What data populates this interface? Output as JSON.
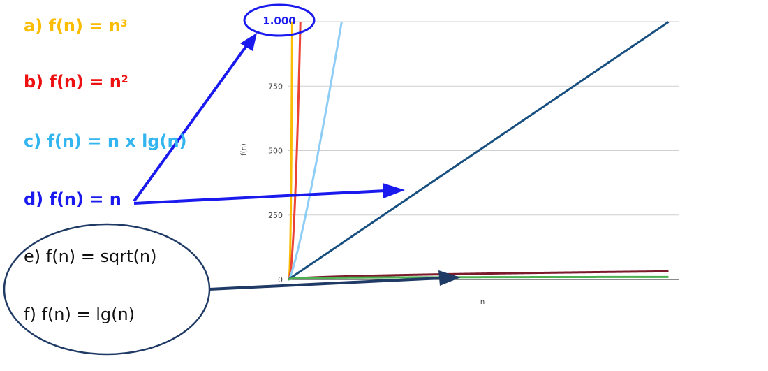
{
  "legend": {
    "a": {
      "prefix": "a) f(n) = n",
      "sup": "3",
      "color": "#fbbc04"
    },
    "b": {
      "prefix": "b) f(n) = n",
      "sup": "2",
      "color": "#ee1111"
    },
    "c": {
      "text": "c) f(n) = n x lg(n)",
      "color": "#33b5f0"
    },
    "d": {
      "text": "d) f(n) = n",
      "color": "#1a1aee"
    },
    "e": {
      "text": "e) f(n) = sqrt(n)",
      "color": "#111111"
    },
    "f": {
      "text": "f) f(n) = lg(n)",
      "color": "#111111"
    }
  },
  "annotation_color": "#1a1aee",
  "ellipse_color": "#203a66",
  "chart_data": {
    "type": "line",
    "title": "",
    "xlabel": "n",
    "ylabel": "f(n)",
    "ylim": [
      0,
      1000
    ],
    "xlim": [
      0,
      1000
    ],
    "yticks": [
      {
        "value": 0,
        "label": "0"
      },
      {
        "value": 250,
        "label": "250"
      },
      {
        "value": 500,
        "label": "500"
      },
      {
        "value": 750,
        "label": "750"
      },
      {
        "value": 1000,
        "label": "1.000"
      }
    ],
    "grid": true,
    "series": [
      {
        "key": "n3",
        "fn": "cube",
        "color": "#fbbc04"
      },
      {
        "key": "n2",
        "fn": "square",
        "color": "#ea4335"
      },
      {
        "key": "nlgn",
        "fn": "nlogn",
        "color": "#8ecdf5"
      },
      {
        "key": "n",
        "fn": "identity",
        "color": "#174f80"
      },
      {
        "key": "sqrtn",
        "fn": "sqrt",
        "color": "#7b1a2a"
      },
      {
        "key": "lgn",
        "fn": "log2",
        "color": "#4caf50"
      }
    ]
  }
}
